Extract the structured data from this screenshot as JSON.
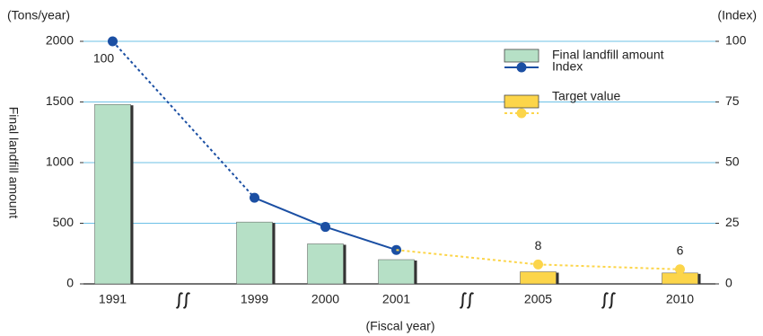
{
  "chart_data": {
    "type": "bar-line",
    "y_unit_label": "(Tons/year)",
    "y2_unit_label": "(Index)",
    "y_label": "Final landfill amount",
    "x_label": "(Fiscal year)",
    "categories": [
      "1991",
      "1999",
      "2000",
      "2001",
      "2005",
      "2010"
    ],
    "ylim": [
      0,
      2000
    ],
    "yticks": [
      0,
      500,
      1000,
      1500,
      2000
    ],
    "y2lim": [
      0,
      100
    ],
    "y2ticks": [
      0,
      25,
      50,
      75,
      100
    ],
    "grid": true,
    "grid_color": "#6cc0e6",
    "legend": "top-right",
    "series": [
      {
        "name": "Final landfill amount",
        "type": "bar",
        "color": "#b6e0c6",
        "values": [
          1480,
          510,
          330,
          200,
          null,
          null
        ]
      },
      {
        "name": "Index",
        "type": "line",
        "axis": "y2",
        "color": "#1b4fa3",
        "line_style": "solid",
        "values": [
          100,
          35.5,
          23.5,
          14,
          null,
          null
        ],
        "value_labels": [
          "100",
          null,
          null,
          null,
          null,
          null
        ]
      },
      {
        "type": "bar",
        "color": "#fcd54a",
        "values": [
          null,
          null,
          null,
          null,
          100,
          90
        ]
      },
      {
        "name": "Target value",
        "type": "line",
        "axis": "y2",
        "color": "#fcd54a",
        "line_style": "dashed",
        "values": [
          null,
          null,
          null,
          14,
          8,
          6
        ],
        "value_labels": [
          null,
          null,
          null,
          null,
          "8",
          "6"
        ]
      }
    ]
  }
}
